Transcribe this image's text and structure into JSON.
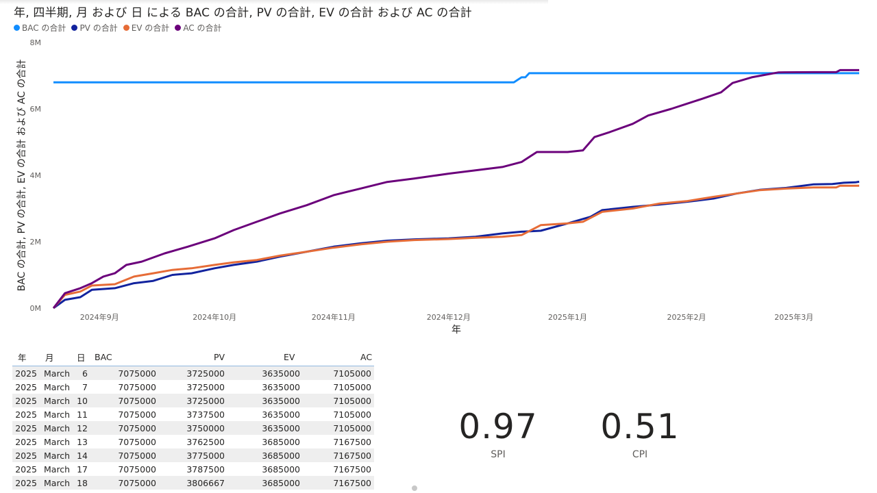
{
  "chart_data": {
    "type": "line",
    "title": "年, 四半期, 月 および 日 による BAC の合計, PV の合計, EV の合計 および AC の合計",
    "xlabel": "年",
    "ylabel": "BAC の合計, PV の合計, EV の合計 および AC の合計",
    "ylim": [
      0,
      8000000
    ],
    "yticks": [
      {
        "value": 0,
        "label": "0M"
      },
      {
        "value": 2000000,
        "label": "2M"
      },
      {
        "value": 4000000,
        "label": "4M"
      },
      {
        "value": 6000000,
        "label": "6M"
      },
      {
        "value": 8000000,
        "label": "8M"
      }
    ],
    "xlim": [
      "2024-08-20",
      "2025-03-18"
    ],
    "xticks": [
      {
        "date": "2024-09-01",
        "label": "2024年9月"
      },
      {
        "date": "2024-10-01",
        "label": "2024年10月"
      },
      {
        "date": "2024-11-01",
        "label": "2024年11月"
      },
      {
        "date": "2024-12-01",
        "label": "2024年12月"
      },
      {
        "date": "2025-01-01",
        "label": "2025年1月"
      },
      {
        "date": "2025-02-01",
        "label": "2025年2月"
      },
      {
        "date": "2025-03-01",
        "label": "2025年3月"
      }
    ],
    "legend_position": "top-left",
    "grid": false,
    "series": [
      {
        "name": "BAC の合計",
        "color": "#118DFF",
        "points": [
          [
            "2024-08-20",
            6800000
          ],
          [
            "2024-12-18",
            6800000
          ],
          [
            "2024-12-20",
            6950000
          ],
          [
            "2024-12-21",
            6950000
          ],
          [
            "2024-12-22",
            7075000
          ],
          [
            "2025-03-18",
            7075000
          ]
        ]
      },
      {
        "name": "PV の合計",
        "color": "#12239E",
        "points": [
          [
            "2024-08-20",
            0
          ],
          [
            "2024-08-23",
            250000
          ],
          [
            "2024-08-27",
            330000
          ],
          [
            "2024-08-30",
            550000
          ],
          [
            "2024-09-05",
            600000
          ],
          [
            "2024-09-10",
            750000
          ],
          [
            "2024-09-15",
            820000
          ],
          [
            "2024-09-20",
            1000000
          ],
          [
            "2024-09-25",
            1050000
          ],
          [
            "2024-10-01",
            1200000
          ],
          [
            "2024-10-06",
            1300000
          ],
          [
            "2024-10-12",
            1400000
          ],
          [
            "2024-10-18",
            1550000
          ],
          [
            "2024-10-25",
            1700000
          ],
          [
            "2024-11-01",
            1850000
          ],
          [
            "2024-11-08",
            1950000
          ],
          [
            "2024-11-15",
            2030000
          ],
          [
            "2024-11-22",
            2070000
          ],
          [
            "2024-12-01",
            2100000
          ],
          [
            "2024-12-08",
            2150000
          ],
          [
            "2024-12-15",
            2250000
          ],
          [
            "2024-12-20",
            2300000
          ],
          [
            "2024-12-25",
            2330000
          ],
          [
            "2025-01-01",
            2550000
          ],
          [
            "2025-01-07",
            2750000
          ],
          [
            "2025-01-10",
            2950000
          ],
          [
            "2025-01-18",
            3050000
          ],
          [
            "2025-01-25",
            3120000
          ],
          [
            "2025-02-01",
            3200000
          ],
          [
            "2025-02-08",
            3300000
          ],
          [
            "2025-02-14",
            3450000
          ],
          [
            "2025-02-20",
            3560000
          ],
          [
            "2025-02-27",
            3620000
          ],
          [
            "2025-03-06",
            3725000
          ],
          [
            "2025-03-11",
            3737500
          ],
          [
            "2025-03-12",
            3750000
          ],
          [
            "2025-03-13",
            3762500
          ],
          [
            "2025-03-14",
            3775000
          ],
          [
            "2025-03-17",
            3787500
          ],
          [
            "2025-03-18",
            3806667
          ]
        ]
      },
      {
        "name": "EV の合計",
        "color": "#E66C37",
        "points": [
          [
            "2024-08-20",
            0
          ],
          [
            "2024-08-23",
            400000
          ],
          [
            "2024-08-27",
            500000
          ],
          [
            "2024-08-30",
            680000
          ],
          [
            "2024-09-05",
            720000
          ],
          [
            "2024-09-10",
            950000
          ],
          [
            "2024-09-15",
            1050000
          ],
          [
            "2024-09-20",
            1150000
          ],
          [
            "2024-09-25",
            1200000
          ],
          [
            "2024-10-01",
            1300000
          ],
          [
            "2024-10-06",
            1380000
          ],
          [
            "2024-10-12",
            1450000
          ],
          [
            "2024-10-18",
            1580000
          ],
          [
            "2024-10-25",
            1700000
          ],
          [
            "2024-11-01",
            1820000
          ],
          [
            "2024-11-08",
            1920000
          ],
          [
            "2024-11-15",
            2000000
          ],
          [
            "2024-11-22",
            2050000
          ],
          [
            "2024-12-01",
            2080000
          ],
          [
            "2024-12-08",
            2120000
          ],
          [
            "2024-12-15",
            2150000
          ],
          [
            "2024-12-20",
            2200000
          ],
          [
            "2024-12-25",
            2500000
          ],
          [
            "2025-01-01",
            2550000
          ],
          [
            "2025-01-05",
            2600000
          ],
          [
            "2025-01-10",
            2900000
          ],
          [
            "2025-01-18",
            3000000
          ],
          [
            "2025-01-25",
            3150000
          ],
          [
            "2025-02-01",
            3220000
          ],
          [
            "2025-02-08",
            3350000
          ],
          [
            "2025-02-14",
            3450000
          ],
          [
            "2025-02-20",
            3550000
          ],
          [
            "2025-02-27",
            3600000
          ],
          [
            "2025-03-06",
            3635000
          ],
          [
            "2025-03-12",
            3635000
          ],
          [
            "2025-03-13",
            3685000
          ],
          [
            "2025-03-18",
            3685000
          ]
        ]
      },
      {
        "name": "AC の合計",
        "color": "#6B007B",
        "points": [
          [
            "2024-08-20",
            0
          ],
          [
            "2024-08-23",
            450000
          ],
          [
            "2024-08-27",
            600000
          ],
          [
            "2024-08-30",
            750000
          ],
          [
            "2024-09-02",
            950000
          ],
          [
            "2024-09-05",
            1050000
          ],
          [
            "2024-09-08",
            1300000
          ],
          [
            "2024-09-12",
            1400000
          ],
          [
            "2024-09-18",
            1650000
          ],
          [
            "2024-09-24",
            1850000
          ],
          [
            "2024-10-01",
            2100000
          ],
          [
            "2024-10-06",
            2350000
          ],
          [
            "2024-10-12",
            2600000
          ],
          [
            "2024-10-18",
            2850000
          ],
          [
            "2024-10-25",
            3100000
          ],
          [
            "2024-11-01",
            3400000
          ],
          [
            "2024-11-08",
            3600000
          ],
          [
            "2024-11-15",
            3800000
          ],
          [
            "2024-11-22",
            3900000
          ],
          [
            "2024-12-01",
            4050000
          ],
          [
            "2024-12-08",
            4150000
          ],
          [
            "2024-12-15",
            4250000
          ],
          [
            "2024-12-20",
            4400000
          ],
          [
            "2024-12-24",
            4700000
          ],
          [
            "2025-01-01",
            4700000
          ],
          [
            "2025-01-05",
            4750000
          ],
          [
            "2025-01-08",
            5150000
          ],
          [
            "2025-01-12",
            5300000
          ],
          [
            "2025-01-18",
            5550000
          ],
          [
            "2025-01-22",
            5800000
          ],
          [
            "2025-01-28",
            6000000
          ],
          [
            "2025-02-01",
            6150000
          ],
          [
            "2025-02-05",
            6300000
          ],
          [
            "2025-02-10",
            6500000
          ],
          [
            "2025-02-13",
            6780000
          ],
          [
            "2025-02-18",
            6950000
          ],
          [
            "2025-02-25",
            7100000
          ],
          [
            "2025-03-06",
            7105000
          ],
          [
            "2025-03-12",
            7105000
          ],
          [
            "2025-03-13",
            7167500
          ],
          [
            "2025-03-18",
            7167500
          ]
        ]
      }
    ]
  },
  "table": {
    "headers": [
      "年",
      "月",
      "日",
      "BAC",
      "PV",
      "EV",
      "AC"
    ],
    "rows": [
      [
        "2025",
        "March",
        "6",
        "7075000",
        "3725000",
        "3635000",
        "7105000"
      ],
      [
        "2025",
        "March",
        "7",
        "7075000",
        "3725000",
        "3635000",
        "7105000"
      ],
      [
        "2025",
        "March",
        "10",
        "7075000",
        "3725000",
        "3635000",
        "7105000"
      ],
      [
        "2025",
        "March",
        "11",
        "7075000",
        "3737500",
        "3635000",
        "7105000"
      ],
      [
        "2025",
        "March",
        "12",
        "7075000",
        "3750000",
        "3635000",
        "7105000"
      ],
      [
        "2025",
        "March",
        "13",
        "7075000",
        "3762500",
        "3685000",
        "7167500"
      ],
      [
        "2025",
        "March",
        "14",
        "7075000",
        "3775000",
        "3685000",
        "7167500"
      ],
      [
        "2025",
        "March",
        "17",
        "7075000",
        "3787500",
        "3685000",
        "7167500"
      ],
      [
        "2025",
        "March",
        "18",
        "7075000",
        "3806667",
        "3685000",
        "7167500"
      ]
    ]
  },
  "kpis": {
    "spi": {
      "value": "0.97",
      "label": "SPI"
    },
    "cpi": {
      "value": "0.51",
      "label": "CPI"
    }
  }
}
